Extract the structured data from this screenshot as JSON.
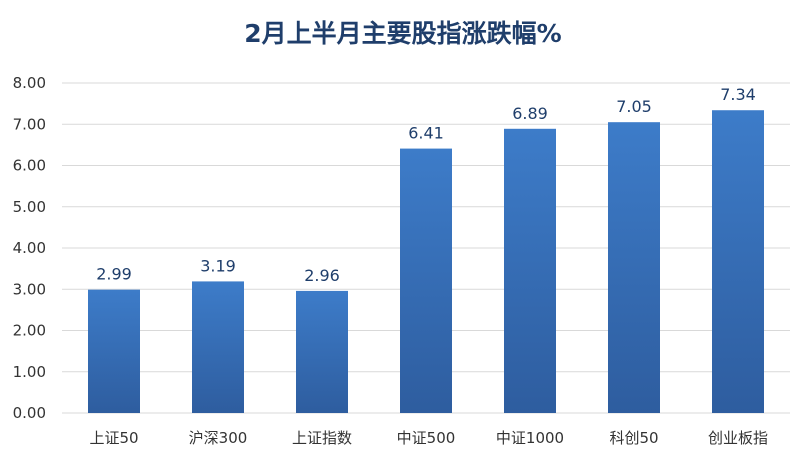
{
  "chart_data": {
    "type": "bar",
    "title": "2月上半月主要股指涨跌幅%",
    "categories": [
      "上证50",
      "沪深300",
      "上证指数",
      "中证500",
      "中证1000",
      "科创50",
      "创业板指"
    ],
    "values": [
      2.99,
      3.19,
      2.96,
      6.41,
      6.89,
      7.05,
      7.34
    ],
    "data_labels": [
      "2.99",
      "3.19",
      "2.96",
      "6.41",
      "6.89",
      "7.05",
      "7.34"
    ],
    "yticks": [
      "0.00",
      "1.00",
      "2.00",
      "3.00",
      "4.00",
      "5.00",
      "6.00",
      "7.00",
      "8.00"
    ],
    "ylim": [
      0,
      8
    ],
    "grid": true,
    "legend": "none",
    "colors": {
      "bar_top": "#3d7cc9",
      "bar_bottom": "#2e5d9f",
      "title": "#1f3e6b",
      "grid": "#d9d9d9"
    }
  }
}
